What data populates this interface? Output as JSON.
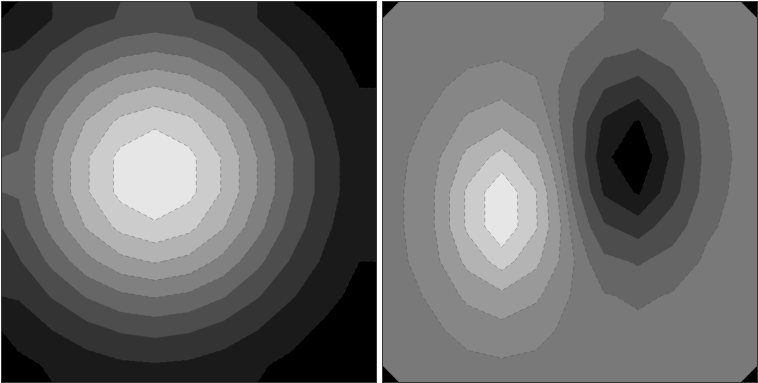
{
  "chart_data": [
    {
      "type": "contour",
      "tick_labels": false,
      "zlim": [
        0,
        100
      ],
      "levels": [
        10,
        20,
        30,
        40,
        50,
        60,
        70,
        80,
        90
      ],
      "grid": [
        [
          13,
          20,
          26,
          31,
          33,
          31,
          26,
          20,
          13,
          8,
          4
        ],
        [
          21,
          31,
          41,
          48,
          51,
          48,
          41,
          31,
          21,
          13,
          7
        ],
        [
          29,
          43,
          57,
          67,
          71,
          67,
          57,
          43,
          29,
          18,
          10
        ],
        [
          36,
          54,
          71,
          83,
          88,
          83,
          71,
          54,
          36,
          22,
          12
        ],
        [
          41,
          60,
          79,
          93,
          99,
          93,
          79,
          60,
          41,
          25,
          13
        ],
        [
          41,
          60,
          79,
          93,
          99,
          93,
          79,
          60,
          41,
          25,
          13
        ],
        [
          36,
          54,
          71,
          83,
          88,
          83,
          71,
          54,
          36,
          22,
          12
        ],
        [
          29,
          43,
          57,
          67,
          71,
          67,
          57,
          43,
          29,
          18,
          10
        ],
        [
          21,
          31,
          41,
          48,
          51,
          48,
          41,
          31,
          21,
          13,
          7
        ],
        [
          13,
          20,
          26,
          31,
          33,
          31,
          26,
          20,
          13,
          8,
          4
        ],
        [
          8,
          11,
          15,
          18,
          19,
          18,
          15,
          11,
          8,
          5,
          3
        ]
      ]
    },
    {
      "type": "contour",
      "tick_labels": false,
      "zlim": [
        -100,
        100
      ],
      "levels": [
        -80,
        -60,
        -40,
        -20,
        -5,
        5,
        20,
        40,
        60,
        80
      ],
      "grid": [
        [
          0,
          0,
          0,
          1,
          0,
          -2,
          -5,
          -7,
          -4,
          -1,
          0
        ],
        [
          0,
          1,
          2,
          3,
          1,
          -5,
          -17,
          -22,
          -13,
          -3,
          0
        ],
        [
          0,
          3,
          9,
          13,
          7,
          -11,
          -39,
          -50,
          -29,
          -7,
          -1
        ],
        [
          1,
          7,
          24,
          35,
          20,
          -16,
          -64,
          -83,
          -48,
          -12,
          -1
        ],
        [
          2,
          14,
          46,
          68,
          42,
          -13,
          -75,
          -98,
          -56,
          -14,
          -2
        ],
        [
          3,
          19,
          64,
          96,
          61,
          -4,
          -63,
          -83,
          -48,
          -12,
          -1
        ],
        [
          3,
          19,
          64,
          96,
          62,
          5,
          -37,
          -50,
          -29,
          -7,
          -1
        ],
        [
          2,
          14,
          46,
          69,
          45,
          8,
          -15,
          -22,
          -13,
          -3,
          0
        ],
        [
          1,
          7,
          24,
          35,
          23,
          5,
          -4,
          -7,
          -4,
          -1,
          0
        ],
        [
          0,
          3,
          9,
          13,
          9,
          2,
          -1,
          -2,
          -1,
          0,
          0
        ],
        [
          0,
          1,
          2,
          3,
          2,
          1,
          0,
          0,
          0,
          0,
          0
        ]
      ]
    }
  ]
}
